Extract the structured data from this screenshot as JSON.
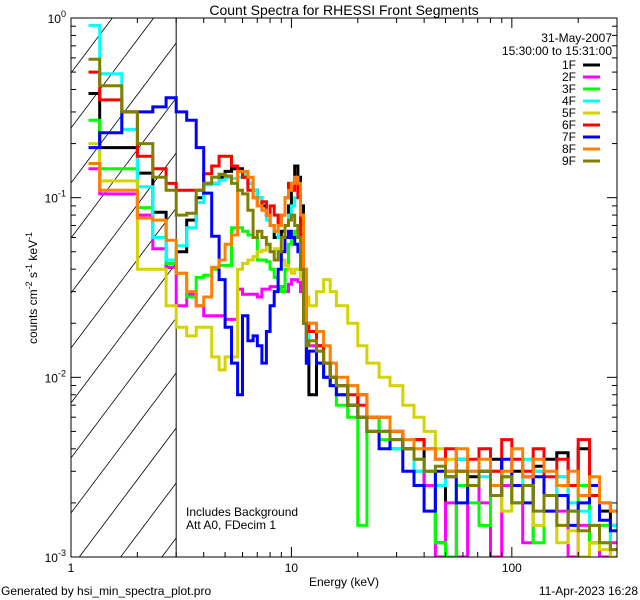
{
  "chart_data": {
    "type": "line",
    "step": true,
    "title": "Count Spectra for RHESSI Front Segments",
    "xlabel": "Energy (keV)",
    "ylabel": "counts cm-2 s-1 keV-1",
    "ylabel_parts": {
      "base": "counts cm",
      "e1": "-2",
      "mid1": " s",
      "e2": "-1",
      "mid2": " keV",
      "e3": "-1"
    },
    "xscale": "log",
    "yscale": "log",
    "xlim": [
      1,
      300
    ],
    "ylim": [
      0.001,
      1
    ],
    "x_tick_labels": [
      "1",
      "10",
      "100"
    ],
    "x_tick_values": [
      1,
      10,
      100
    ],
    "y_tick_labels": [
      {
        "base": "10",
        "exp": "0",
        "value": 1
      },
      {
        "base": "10",
        "exp": "-1",
        "value": 0.1
      },
      {
        "base": "10",
        "exp": "-2",
        "value": 0.01
      },
      {
        "base": "10",
        "exp": "-3",
        "value": 0.001
      }
    ],
    "date": "31-May-2007",
    "time_range": "15:30:00 to 15:31:00",
    "annotations": [
      "Includes Background",
      "Att A0, FDecim 1"
    ],
    "hatched_region_keV": [
      1,
      3
    ],
    "legend_position": "top-right",
    "energy_edges": [
      1.2,
      1.35,
      1.7,
      2.0,
      2.35,
      2.7,
      3.0,
      3.35,
      3.7,
      4.0,
      4.35,
      4.7,
      5.0,
      5.35,
      5.7,
      6.0,
      6.35,
      6.7,
      7.0,
      7.35,
      7.7,
      8.0,
      8.35,
      8.7,
      9.0,
      9.35,
      9.7,
      10.0,
      10.35,
      10.7,
      11.0,
      11.35,
      11.7,
      12.0,
      13,
      14,
      15,
      16,
      18,
      20,
      22,
      25,
      28,
      32,
      36,
      40,
      45,
      50,
      56,
      63,
      71,
      80,
      90,
      100,
      112,
      125,
      140,
      160,
      180,
      200,
      225,
      250,
      280,
      300
    ],
    "series": [
      {
        "name": "1F",
        "color": "#000000",
        "values": [
          0.38,
          0.19,
          0.19,
          0.137,
          0.083,
          0.041,
          0.05,
          0.075,
          0.1,
          0.12,
          0.12,
          0.13,
          0.14,
          0.145,
          0.145,
          0.13,
          0.12,
          0.11,
          0.1,
          0.09,
          0.08,
          0.07,
          0.06,
          0.06,
          0.065,
          0.07,
          0.09,
          0.12,
          0.15,
          0.13,
          0.09,
          0.04,
          0.012,
          0.008,
          0.015,
          0.012,
          0.01,
          0.009,
          0.007,
          0.008,
          0.006,
          0.005,
          0.005,
          0.004,
          0.0045,
          0.0025,
          0.0012,
          0.003,
          0.0035,
          0.0028,
          0.003,
          0.0035,
          0.0025,
          0.003,
          0.0028,
          0.0032,
          0.0035,
          0.0038,
          0.0025,
          0.004,
          0.0022,
          0.0018,
          0.0015
        ]
      },
      {
        "name": "2F",
        "color": "#ff00ff",
        "values": [
          0.145,
          0.105,
          0.105,
          0.08,
          0.052,
          0.041,
          0.025,
          0.029,
          0.025,
          0.022,
          0.022,
          0.022,
          0.021,
          0.021,
          0.031,
          0.029,
          0.029,
          0.029,
          0.028,
          0.031,
          0.031,
          0.032,
          0.032,
          0.031,
          0.032,
          0.03,
          0.033,
          0.035,
          0.035,
          0.034,
          0.03,
          0.02,
          0.015,
          0.015,
          0.012,
          0.01,
          0.009,
          0.008,
          0.007,
          0.006,
          0.005,
          0.005,
          0.004,
          0.004,
          0.003,
          0.0025,
          0.001,
          0.002,
          0.0009,
          0.003,
          0.002,
          0.0009,
          0.0025,
          0.002,
          0.0012,
          0.003,
          0.0022,
          0.0018,
          0.001,
          0.0015,
          0.0012,
          0.001,
          0.0012
        ]
      },
      {
        "name": "3F",
        "color": "#00ff00",
        "values": [
          0.27,
          0.145,
          0.145,
          0.088,
          0.06,
          0.043,
          0.038,
          0.028,
          0.036,
          0.037,
          0.04,
          0.042,
          0.042,
          0.068,
          0.068,
          0.065,
          0.062,
          0.06,
          0.045,
          0.045,
          0.044,
          0.04,
          0.036,
          0.032,
          0.03,
          0.04,
          0.055,
          0.06,
          0.065,
          0.07,
          0.05,
          0.03,
          0.02,
          0.018,
          0.012,
          0.01,
          0.009,
          0.007,
          0.006,
          0.0015,
          0.006,
          0.0045,
          0.004,
          0.004,
          0.0035,
          0.003,
          0.0012,
          0.001,
          0.0025,
          0.002,
          0.0015,
          0.003,
          0.0028,
          0.002,
          0.0025,
          0.0012,
          0.0022,
          0.0028,
          0.0018,
          0.0025,
          0.0012,
          0.0015,
          0.0011
        ]
      },
      {
        "name": "4F",
        "color": "#00ffff",
        "values": [
          0.91,
          0.49,
          0.24,
          0.115,
          0.06,
          0.045,
          0.054,
          0.068,
          0.094,
          0.118,
          0.12,
          0.125,
          0.13,
          0.128,
          0.13,
          0.135,
          0.12,
          0.11,
          0.1,
          0.085,
          0.075,
          0.07,
          0.065,
          0.06,
          0.06,
          0.07,
          0.08,
          0.09,
          0.1,
          0.11,
          0.08,
          0.04,
          0.015,
          0.02,
          0.014,
          0.012,
          0.01,
          0.008,
          0.007,
          0.006,
          0.005,
          0.005,
          0.004,
          0.004,
          0.003,
          0.003,
          0.0025,
          0.003,
          0.0035,
          0.003,
          0.0028,
          0.0025,
          0.003,
          0.0025,
          0.0035,
          0.003,
          0.0022,
          0.0028,
          0.002,
          0.0018,
          0.0015,
          0.0012,
          0.0015
        ]
      },
      {
        "name": "5F",
        "color": "#d4d400",
        "values": [
          0.2,
          0.124,
          0.124,
          0.04,
          0.04,
          0.025,
          0.019,
          0.017,
          0.019,
          0.019,
          0.013,
          0.011,
          0.013,
          0.013,
          0.04,
          0.043,
          0.045,
          0.047,
          0.05,
          0.051,
          0.055,
          0.05,
          0.052,
          0.05,
          0.045,
          0.042,
          0.04,
          0.038,
          0.04,
          0.04,
          0.035,
          0.03,
          0.028,
          0.025,
          0.03,
          0.035,
          0.03,
          0.025,
          0.02,
          0.015,
          0.012,
          0.01,
          0.009,
          0.007,
          0.006,
          0.005,
          0.004,
          0.0035,
          0.003,
          0.0025,
          0.003,
          0.0022,
          0.0018,
          0.0025,
          0.002,
          0.0015,
          0.0018,
          0.0012,
          0.0014,
          0.001,
          0.0012,
          0.0011,
          0.001
        ]
      },
      {
        "name": "6F",
        "color": "#ff0000",
        "values": [
          0.5,
          0.35,
          0.3,
          0.17,
          0.145,
          0.12,
          0.11,
          0.11,
          0.11,
          0.136,
          0.15,
          0.17,
          0.17,
          0.15,
          0.14,
          0.13,
          0.11,
          0.1,
          0.09,
          0.095,
          0.08,
          0.09,
          0.08,
          0.07,
          0.08,
          0.1,
          0.12,
          0.11,
          0.13,
          0.1,
          0.06,
          0.03,
          0.02,
          0.018,
          0.015,
          0.012,
          0.01,
          0.009,
          0.008,
          0.007,
          0.006,
          0.006,
          0.005,
          0.004,
          0.0045,
          0.004,
          0.0035,
          0.004,
          0.003,
          0.0035,
          0.004,
          0.003,
          0.0045,
          0.0035,
          0.003,
          0.004,
          0.0028,
          0.0035,
          0.0025,
          0.0045,
          0.0022,
          0.002,
          0.0018
        ]
      },
      {
        "name": "7F",
        "color": "#0000ff",
        "values": [
          0.19,
          0.23,
          0.3,
          0.3,
          0.32,
          0.36,
          0.3,
          0.27,
          0.19,
          0.106,
          0.061,
          0.035,
          0.019,
          0.012,
          0.008,
          0.022,
          0.016,
          0.017,
          0.015,
          0.012,
          0.018,
          0.025,
          0.03,
          0.04,
          0.05,
          0.06,
          0.065,
          0.06,
          0.055,
          0.05,
          0.04,
          0.02,
          0.012,
          0.014,
          0.012,
          0.01,
          0.009,
          0.008,
          0.007,
          0.006,
          0.005,
          0.004,
          0.0045,
          0.003,
          0.0025,
          0.0018,
          0.003,
          0.0028,
          0.002,
          0.0025,
          0.003,
          0.0022,
          0.0035,
          0.0025,
          0.002,
          0.0028,
          0.0018,
          0.0022,
          0.0015,
          0.002,
          0.0025,
          0.0016,
          0.0014
        ]
      },
      {
        "name": "8F",
        "color": "#ff8000",
        "values": [
          0.155,
          0.11,
          0.11,
          0.077,
          0.075,
          0.058,
          0.038,
          0.03,
          0.025,
          0.028,
          0.041,
          0.045,
          0.055,
          0.062,
          0.14,
          0.14,
          0.13,
          0.1,
          0.09,
          0.085,
          0.08,
          0.07,
          0.065,
          0.07,
          0.08,
          0.1,
          0.11,
          0.12,
          0.13,
          0.12,
          0.08,
          0.04,
          0.02,
          0.02,
          0.018,
          0.015,
          0.012,
          0.01,
          0.009,
          0.008,
          0.006,
          0.006,
          0.005,
          0.0045,
          0.004,
          0.004,
          0.0035,
          0.003,
          0.004,
          0.003,
          0.0035,
          0.0025,
          0.003,
          0.004,
          0.0028,
          0.0035,
          0.003,
          0.0025,
          0.003,
          0.0022,
          0.0028,
          0.002,
          0.0018
        ]
      },
      {
        "name": "9F",
        "color": "#808000",
        "values": [
          0.59,
          0.42,
          0.3,
          0.2,
          0.13,
          0.11,
          0.08,
          0.082,
          0.11,
          0.12,
          0.13,
          0.135,
          0.132,
          0.12,
          0.11,
          0.105,
          0.085,
          0.06,
          0.065,
          0.06,
          0.055,
          0.05,
          0.045,
          0.05,
          0.06,
          0.07,
          0.075,
          0.08,
          0.07,
          0.06,
          0.04,
          0.02,
          0.015,
          0.016,
          0.014,
          0.012,
          0.01,
          0.009,
          0.007,
          0.006,
          0.005,
          0.005,
          0.0045,
          0.004,
          0.0035,
          0.003,
          0.0032,
          0.0028,
          0.003,
          0.0025,
          0.003,
          0.0022,
          0.0028,
          0.002,
          0.0025,
          0.0018,
          0.0022,
          0.0015,
          0.0018,
          0.0014,
          0.0015,
          0.0012,
          0.0011
        ]
      }
    ]
  },
  "footer": {
    "generated_by": "Generated by hsi_min_spectra_plot.pro",
    "timestamp": "11-Apr-2023 16:28"
  }
}
